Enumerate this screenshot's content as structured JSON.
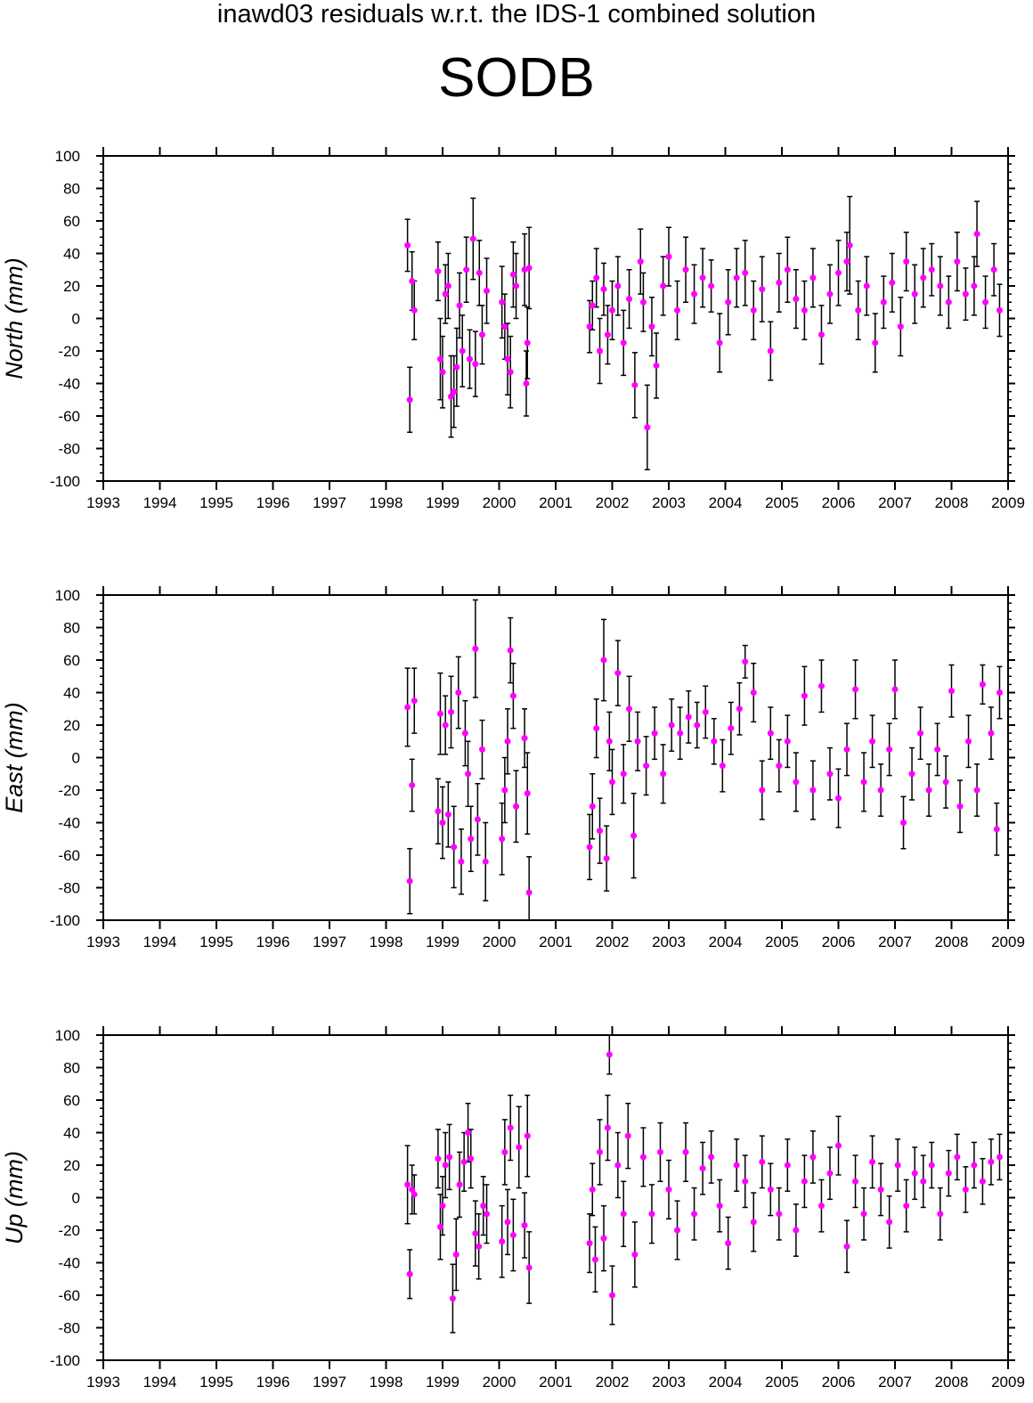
{
  "header": {
    "title": "inawd03 residuals w.r.t. the IDS-1 combined solution",
    "station": "SODB"
  },
  "colors": {
    "point": "#ff00ff",
    "errorbar": "#000000",
    "axis": "#000000"
  },
  "chart_data": [
    {
      "type": "scatter",
      "ylabel": "North (mm)",
      "ylim": [
        -100,
        100
      ],
      "xlim": [
        1993,
        2009
      ],
      "x_ticks": [
        1993,
        1994,
        1995,
        1996,
        1997,
        1998,
        1999,
        2000,
        2001,
        2002,
        2003,
        2004,
        2005,
        2006,
        2007,
        2008,
        2009
      ],
      "y_ticks": [
        -100,
        -80,
        -60,
        -40,
        -20,
        0,
        20,
        40,
        60,
        80,
        100
      ],
      "points": [
        [
          1998.38,
          45,
          16
        ],
        [
          1998.42,
          -50,
          20
        ],
        [
          1998.46,
          23,
          18
        ],
        [
          1998.5,
          5,
          18
        ],
        [
          1998.92,
          29,
          18
        ],
        [
          1998.96,
          -25,
          25
        ],
        [
          1999.0,
          -33,
          22
        ],
        [
          1999.05,
          15,
          18
        ],
        [
          1999.1,
          20,
          20
        ],
        [
          1999.15,
          -48,
          25
        ],
        [
          1999.2,
          -45,
          22
        ],
        [
          1999.25,
          -30,
          24
        ],
        [
          1999.3,
          8,
          20
        ],
        [
          1999.35,
          -20,
          22
        ],
        [
          1999.42,
          30,
          20
        ],
        [
          1999.48,
          -25,
          18
        ],
        [
          1999.54,
          49,
          25
        ],
        [
          1999.58,
          -28,
          20
        ],
        [
          1999.65,
          28,
          20
        ],
        [
          1999.7,
          -10,
          18
        ],
        [
          1999.78,
          17,
          20
        ],
        [
          2000.05,
          10,
          22
        ],
        [
          2000.1,
          -5,
          20
        ],
        [
          2000.15,
          -25,
          22
        ],
        [
          2000.2,
          -33,
          22
        ],
        [
          2000.25,
          27,
          20
        ],
        [
          2000.3,
          20,
          20
        ],
        [
          2000.45,
          30,
          22
        ],
        [
          2000.48,
          -40,
          20
        ],
        [
          2000.5,
          -15,
          22
        ],
        [
          2000.53,
          31,
          25
        ],
        [
          2001.6,
          -5,
          16
        ],
        [
          2001.65,
          8,
          15
        ],
        [
          2001.72,
          25,
          18
        ],
        [
          2001.78,
          -20,
          20
        ],
        [
          2001.85,
          18,
          16
        ],
        [
          2001.92,
          -10,
          18
        ],
        [
          2002.0,
          5,
          18
        ],
        [
          2002.1,
          20,
          18
        ],
        [
          2002.2,
          -15,
          20
        ],
        [
          2002.3,
          12,
          18
        ],
        [
          2002.4,
          -41,
          20
        ],
        [
          2002.5,
          35,
          20
        ],
        [
          2002.55,
          10,
          18
        ],
        [
          2002.62,
          -67,
          26
        ],
        [
          2002.7,
          -5,
          18
        ],
        [
          2002.78,
          -29,
          20
        ],
        [
          2002.9,
          20,
          18
        ],
        [
          2003.0,
          38,
          18
        ],
        [
          2003.15,
          5,
          18
        ],
        [
          2003.3,
          30,
          20
        ],
        [
          2003.45,
          15,
          18
        ],
        [
          2003.6,
          25,
          18
        ],
        [
          2003.75,
          20,
          16
        ],
        [
          2003.9,
          -15,
          18
        ],
        [
          2004.05,
          10,
          20
        ],
        [
          2004.2,
          25,
          18
        ],
        [
          2004.35,
          28,
          20
        ],
        [
          2004.5,
          5,
          18
        ],
        [
          2004.65,
          18,
          20
        ],
        [
          2004.8,
          -20,
          18
        ],
        [
          2004.95,
          22,
          18
        ],
        [
          2005.1,
          30,
          20
        ],
        [
          2005.25,
          12,
          18
        ],
        [
          2005.4,
          5,
          18
        ],
        [
          2005.55,
          25,
          18
        ],
        [
          2005.7,
          -10,
          18
        ],
        [
          2005.85,
          15,
          18
        ],
        [
          2006.0,
          28,
          20
        ],
        [
          2006.15,
          35,
          18
        ],
        [
          2006.2,
          45,
          30
        ],
        [
          2006.35,
          5,
          18
        ],
        [
          2006.5,
          20,
          18
        ],
        [
          2006.65,
          -15,
          18
        ],
        [
          2006.8,
          10,
          16
        ],
        [
          2006.95,
          22,
          18
        ],
        [
          2007.1,
          -5,
          18
        ],
        [
          2007.2,
          35,
          18
        ],
        [
          2007.35,
          15,
          18
        ],
        [
          2007.5,
          25,
          18
        ],
        [
          2007.65,
          30,
          16
        ],
        [
          2007.8,
          20,
          18
        ],
        [
          2007.95,
          10,
          16
        ],
        [
          2008.1,
          35,
          18
        ],
        [
          2008.25,
          15,
          16
        ],
        [
          2008.4,
          20,
          18
        ],
        [
          2008.45,
          52,
          20
        ],
        [
          2008.6,
          10,
          16
        ],
        [
          2008.75,
          30,
          16
        ],
        [
          2008.85,
          5,
          16
        ]
      ]
    },
    {
      "type": "scatter",
      "ylabel": "East (mm)",
      "ylim": [
        -100,
        100
      ],
      "xlim": [
        1993,
        2009
      ],
      "x_ticks": [
        1993,
        1994,
        1995,
        1996,
        1997,
        1998,
        1999,
        2000,
        2001,
        2002,
        2003,
        2004,
        2005,
        2006,
        2007,
        2008,
        2009
      ],
      "y_ticks": [
        -100,
        -80,
        -60,
        -40,
        -20,
        0,
        20,
        40,
        60,
        80,
        100
      ],
      "points": [
        [
          1998.38,
          31,
          24
        ],
        [
          1998.42,
          -76,
          20
        ],
        [
          1998.46,
          -17,
          16
        ],
        [
          1998.5,
          35,
          20
        ],
        [
          1998.92,
          -33,
          20
        ],
        [
          1998.96,
          27,
          25
        ],
        [
          1999.0,
          -40,
          22
        ],
        [
          1999.05,
          20,
          18
        ],
        [
          1999.1,
          -35,
          20
        ],
        [
          1999.15,
          28,
          22
        ],
        [
          1999.2,
          -55,
          25
        ],
        [
          1999.28,
          40,
          22
        ],
        [
          1999.33,
          -64,
          20
        ],
        [
          1999.4,
          15,
          20
        ],
        [
          1999.45,
          -10,
          20
        ],
        [
          1999.5,
          -50,
          20
        ],
        [
          1999.58,
          67,
          30
        ],
        [
          1999.62,
          -38,
          22
        ],
        [
          1999.7,
          5,
          18
        ],
        [
          1999.76,
          -64,
          24
        ],
        [
          2000.05,
          -50,
          22
        ],
        [
          2000.1,
          -20,
          20
        ],
        [
          2000.15,
          10,
          20
        ],
        [
          2000.2,
          66,
          20
        ],
        [
          2000.25,
          38,
          20
        ],
        [
          2000.3,
          -30,
          22
        ],
        [
          2000.45,
          12,
          18
        ],
        [
          2000.5,
          -22,
          25
        ],
        [
          2000.53,
          -83,
          22
        ],
        [
          2001.6,
          -55,
          20
        ],
        [
          2001.65,
          -30,
          20
        ],
        [
          2001.72,
          18,
          18
        ],
        [
          2001.78,
          -45,
          20
        ],
        [
          2001.85,
          60,
          25
        ],
        [
          2001.9,
          -62,
          20
        ],
        [
          2001.95,
          10,
          18
        ],
        [
          2002.0,
          -15,
          20
        ],
        [
          2002.1,
          52,
          20
        ],
        [
          2002.2,
          -10,
          18
        ],
        [
          2002.3,
          30,
          20
        ],
        [
          2002.38,
          -48,
          26
        ],
        [
          2002.45,
          10,
          18
        ],
        [
          2002.6,
          -5,
          18
        ],
        [
          2002.75,
          15,
          16
        ],
        [
          2002.9,
          -10,
          18
        ],
        [
          2003.05,
          20,
          16
        ],
        [
          2003.2,
          15,
          16
        ],
        [
          2003.35,
          25,
          16
        ],
        [
          2003.5,
          20,
          14
        ],
        [
          2003.65,
          28,
          16
        ],
        [
          2003.8,
          10,
          14
        ],
        [
          2003.95,
          -5,
          16
        ],
        [
          2004.1,
          18,
          16
        ],
        [
          2004.25,
          30,
          16
        ],
        [
          2004.35,
          59,
          10
        ],
        [
          2004.5,
          40,
          18
        ],
        [
          2004.65,
          -20,
          18
        ],
        [
          2004.8,
          15,
          16
        ],
        [
          2004.95,
          -5,
          16
        ],
        [
          2005.1,
          10,
          16
        ],
        [
          2005.25,
          -15,
          18
        ],
        [
          2005.4,
          38,
          18
        ],
        [
          2005.55,
          -20,
          18
        ],
        [
          2005.7,
          44,
          16
        ],
        [
          2005.85,
          -10,
          16
        ],
        [
          2006.0,
          -25,
          18
        ],
        [
          2006.15,
          5,
          16
        ],
        [
          2006.3,
          42,
          18
        ],
        [
          2006.45,
          -15,
          18
        ],
        [
          2006.6,
          10,
          16
        ],
        [
          2006.75,
          -20,
          16
        ],
        [
          2006.9,
          5,
          16
        ],
        [
          2007.0,
          42,
          18
        ],
        [
          2007.15,
          -40,
          16
        ],
        [
          2007.3,
          -10,
          16
        ],
        [
          2007.45,
          15,
          16
        ],
        [
          2007.6,
          -20,
          16
        ],
        [
          2007.75,
          5,
          16
        ],
        [
          2007.9,
          -15,
          16
        ],
        [
          2008.0,
          41,
          16
        ],
        [
          2008.15,
          -30,
          16
        ],
        [
          2008.3,
          10,
          16
        ],
        [
          2008.45,
          -20,
          16
        ],
        [
          2008.55,
          45,
          12
        ],
        [
          2008.7,
          15,
          16
        ],
        [
          2008.8,
          -44,
          16
        ],
        [
          2008.85,
          40,
          16
        ]
      ]
    },
    {
      "type": "scatter",
      "ylabel": "Up (mm)",
      "ylim": [
        -100,
        100
      ],
      "xlim": [
        1993,
        2009
      ],
      "x_ticks": [
        1993,
        1994,
        1995,
        1996,
        1997,
        1998,
        1999,
        2000,
        2001,
        2002,
        2003,
        2004,
        2005,
        2006,
        2007,
        2008,
        2009
      ],
      "y_ticks": [
        -100,
        -80,
        -60,
        -40,
        -20,
        0,
        20,
        40,
        60,
        80,
        100
      ],
      "points": [
        [
          1998.38,
          8,
          24
        ],
        [
          1998.42,
          -47,
          15
        ],
        [
          1998.46,
          5,
          15
        ],
        [
          1998.5,
          2,
          12
        ],
        [
          1998.92,
          24,
          18
        ],
        [
          1998.96,
          -18,
          20
        ],
        [
          1999.0,
          -5,
          18
        ],
        [
          1999.05,
          20,
          20
        ],
        [
          1999.12,
          25,
          20
        ],
        [
          1999.18,
          -62,
          21
        ],
        [
          1999.24,
          -35,
          22
        ],
        [
          1999.3,
          8,
          20
        ],
        [
          1999.38,
          22,
          18
        ],
        [
          1999.45,
          40,
          18
        ],
        [
          1999.5,
          24,
          18
        ],
        [
          1999.58,
          -22,
          20
        ],
        [
          1999.64,
          -30,
          20
        ],
        [
          1999.72,
          -5,
          18
        ],
        [
          1999.78,
          -10,
          18
        ],
        [
          2000.05,
          -27,
          22
        ],
        [
          2000.1,
          28,
          20
        ],
        [
          2000.15,
          -15,
          20
        ],
        [
          2000.2,
          43,
          20
        ],
        [
          2000.25,
          -23,
          22
        ],
        [
          2000.35,
          31,
          25
        ],
        [
          2000.45,
          -17,
          20
        ],
        [
          2000.5,
          38,
          25
        ],
        [
          2000.53,
          -43,
          22
        ],
        [
          2001.6,
          -28,
          18
        ],
        [
          2001.65,
          5,
          16
        ],
        [
          2001.7,
          -38,
          20
        ],
        [
          2001.78,
          28,
          20
        ],
        [
          2001.85,
          -25,
          20
        ],
        [
          2001.92,
          43,
          20
        ],
        [
          2001.95,
          88,
          12
        ],
        [
          2002.0,
          -60,
          18
        ],
        [
          2002.1,
          20,
          20
        ],
        [
          2002.2,
          -10,
          20
        ],
        [
          2002.28,
          38,
          20
        ],
        [
          2002.4,
          -35,
          20
        ],
        [
          2002.55,
          25,
          18
        ],
        [
          2002.7,
          -10,
          18
        ],
        [
          2002.85,
          28,
          18
        ],
        [
          2003.0,
          5,
          18
        ],
        [
          2003.15,
          -20,
          18
        ],
        [
          2003.3,
          28,
          18
        ],
        [
          2003.45,
          -10,
          16
        ],
        [
          2003.6,
          18,
          16
        ],
        [
          2003.75,
          25,
          16
        ],
        [
          2003.9,
          -5,
          16
        ],
        [
          2004.05,
          -28,
          16
        ],
        [
          2004.2,
          20,
          16
        ],
        [
          2004.35,
          10,
          16
        ],
        [
          2004.5,
          -15,
          18
        ],
        [
          2004.65,
          22,
          16
        ],
        [
          2004.8,
          5,
          16
        ],
        [
          2004.95,
          -10,
          16
        ],
        [
          2005.1,
          20,
          16
        ],
        [
          2005.25,
          -20,
          16
        ],
        [
          2005.4,
          10,
          16
        ],
        [
          2005.55,
          25,
          16
        ],
        [
          2005.7,
          -5,
          16
        ],
        [
          2005.85,
          15,
          16
        ],
        [
          2006.0,
          32,
          18
        ],
        [
          2006.15,
          -30,
          16
        ],
        [
          2006.3,
          10,
          16
        ],
        [
          2006.45,
          -10,
          16
        ],
        [
          2006.6,
          22,
          16
        ],
        [
          2006.75,
          5,
          16
        ],
        [
          2006.9,
          -15,
          16
        ],
        [
          2007.05,
          20,
          16
        ],
        [
          2007.2,
          -5,
          16
        ],
        [
          2007.35,
          15,
          16
        ],
        [
          2007.5,
          10,
          16
        ],
        [
          2007.65,
          20,
          14
        ],
        [
          2007.8,
          -10,
          16
        ],
        [
          2007.95,
          15,
          14
        ],
        [
          2008.1,
          25,
          14
        ],
        [
          2008.25,
          5,
          14
        ],
        [
          2008.4,
          20,
          14
        ],
        [
          2008.55,
          10,
          14
        ],
        [
          2008.7,
          22,
          14
        ],
        [
          2008.85,
          25,
          14
        ]
      ]
    }
  ]
}
